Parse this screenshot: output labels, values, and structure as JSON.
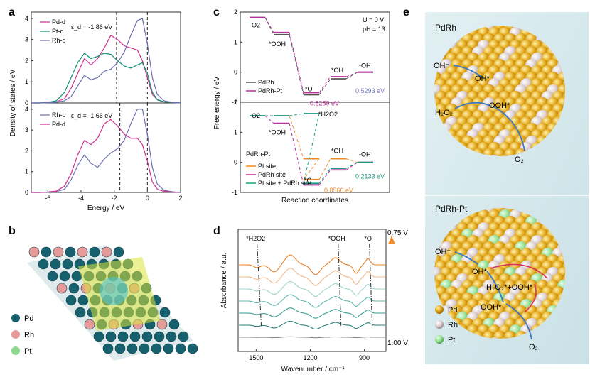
{
  "panel_labels": {
    "a": "a",
    "b": "b",
    "c": "c",
    "d": "d",
    "e": "e"
  },
  "chart_data": [
    {
      "panel": "a-top",
      "type": "line",
      "ylabel": "Density of states / eV",
      "xlim": [
        -7,
        2
      ],
      "ylim": [
        0,
        4.3
      ],
      "yticks": [
        "0",
        "1",
        "2",
        "3",
        "4"
      ],
      "annotation": "ε_d = -1.86 eV",
      "dashed_lines_x": [
        -1.86,
        0
      ],
      "series": [
        {
          "name": "Pd-d",
          "color": "#cc2f8c",
          "x": [
            -7,
            -6.5,
            -6,
            -5.5,
            -5,
            -4.6,
            -4.2,
            -3.8,
            -3.4,
            -3.0,
            -2.6,
            -2.2,
            -1.8,
            -1.4,
            -1.0,
            -0.6,
            -0.3,
            0,
            0.3,
            0.6,
            1,
            1.5,
            2
          ],
          "y": [
            0,
            0,
            0.02,
            0.05,
            0.2,
            0.7,
            1.4,
            2.1,
            1.8,
            2.1,
            2.6,
            3.2,
            3.0,
            2.7,
            2.6,
            2.5,
            2.0,
            1.2,
            0.4,
            0.15,
            0.05,
            0.02,
            0
          ]
        },
        {
          "name": "Pt-d",
          "color": "#0e8f73",
          "x": [
            -7,
            -6.5,
            -6,
            -5.5,
            -5,
            -4.6,
            -4.2,
            -3.8,
            -3.4,
            -3.0,
            -2.6,
            -2.2,
            -1.8,
            -1.4,
            -1.0,
            -0.6,
            -0.3,
            0,
            0.3,
            0.6,
            1,
            1.5,
            2
          ],
          "y": [
            0,
            0,
            0.03,
            0.1,
            0.5,
            1.2,
            1.9,
            2.35,
            2.1,
            2.2,
            2.35,
            2.3,
            2.0,
            1.75,
            1.65,
            1.8,
            1.9,
            1.4,
            0.5,
            0.15,
            0.05,
            0.02,
            0
          ]
        },
        {
          "name": "Rh-d",
          "color": "#6b6fb0",
          "x": [
            -7,
            -6.5,
            -6,
            -5.5,
            -5,
            -4.6,
            -4.2,
            -3.8,
            -3.4,
            -3.0,
            -2.6,
            -2.2,
            -1.8,
            -1.4,
            -1.0,
            -0.6,
            -0.3,
            0,
            0.3,
            0.6,
            1,
            1.5,
            2
          ],
          "y": [
            0,
            0,
            0.01,
            0.03,
            0.1,
            0.3,
            0.8,
            1.3,
            1.1,
            1.2,
            1.5,
            1.6,
            1.9,
            2.4,
            3.2,
            3.9,
            4.0,
            2.8,
            1.2,
            0.4,
            0.1,
            0.03,
            0
          ]
        }
      ]
    },
    {
      "panel": "a-bottom",
      "type": "line",
      "xlabel": "Energy / eV",
      "xlim": [
        -7,
        2
      ],
      "ylim": [
        0,
        4.3
      ],
      "xticks": [
        "-6",
        "-4",
        "-2",
        "0",
        "2"
      ],
      "yticks": [
        "0",
        "1",
        "2",
        "3",
        "4"
      ],
      "annotation": "ε_d = -1.66 eV",
      "dashed_lines_x": [
        -1.66,
        0
      ],
      "series": [
        {
          "name": "Rh-d",
          "color": "#6b6fb0",
          "x": [
            -7,
            -6.5,
            -6,
            -5.5,
            -5,
            -4.6,
            -4.2,
            -3.8,
            -3.4,
            -3.0,
            -2.6,
            -2.2,
            -1.8,
            -1.4,
            -1.0,
            -0.6,
            -0.3,
            0,
            0.3,
            0.6,
            1,
            1.5,
            2
          ],
          "y": [
            0,
            0,
            0.01,
            0.03,
            0.15,
            0.6,
            1.3,
            1.8,
            1.4,
            1.2,
            1.6,
            1.9,
            2.1,
            2.5,
            3.3,
            4.0,
            4.0,
            2.8,
            1.2,
            0.4,
            0.1,
            0.03,
            0
          ]
        },
        {
          "name": "Pd-d",
          "color": "#cc2f8c",
          "x": [
            -7,
            -6.5,
            -6,
            -5.5,
            -5,
            -4.6,
            -4.2,
            -3.8,
            -3.4,
            -3.0,
            -2.6,
            -2.2,
            -1.8,
            -1.4,
            -1.0,
            -0.6,
            -0.3,
            0,
            0.3,
            0.6,
            1,
            1.5,
            2
          ],
          "y": [
            0,
            0,
            0.02,
            0.06,
            0.3,
            0.9,
            1.8,
            2.5,
            2.3,
            2.6,
            3.3,
            3.5,
            3.2,
            2.8,
            2.6,
            2.6,
            2.3,
            1.5,
            0.5,
            0.15,
            0.05,
            0.02,
            0
          ]
        }
      ]
    },
    {
      "panel": "c",
      "type": "line",
      "ylabel": "Free energy / eV",
      "xlabel": "Reaction coordinates",
      "conditions": [
        "U = 0 V",
        "pH = 13"
      ],
      "top": {
        "ylim": [
          -1,
          2
        ],
        "yticks": [
          "-1",
          "0",
          "1",
          "2"
        ],
        "species": [
          "O2",
          "*OOH",
          "*O",
          "*OH",
          "-OH"
        ],
        "series": [
          {
            "name": "PdRh",
            "color": "#555555",
            "values": [
              1.82,
              1.25,
              -0.75,
              -0.22,
              0
            ]
          },
          {
            "name": "PdRh-Pt",
            "color": "#bb2d9a",
            "values": [
              1.82,
              1.32,
              -0.68,
              -0.15,
              0
            ]
          }
        ],
        "labels": {
          "gap1": "0.5289 eV",
          "gap2": "0.5293 eV"
        }
      },
      "bottom": {
        "ylim": [
          -1,
          2
        ],
        "yticks": [
          "-1",
          "0",
          "1",
          "2"
        ],
        "species": [
          "O2",
          "*OOH",
          "*O",
          "*H2O2",
          "*OH",
          "-OH"
        ],
        "title": "PdRh-Pt",
        "series": [
          {
            "name": "Pt site",
            "color": "#f08a24",
            "values": [
              1.55,
              1.55,
              0.12,
              -0.57,
              0.12,
              0
            ]
          },
          {
            "name": "PdRh site",
            "color": "#bb2d9a",
            "values": [
              1.55,
              1.3,
              -0.75,
              null,
              -0.25,
              0
            ]
          },
          {
            "name": "Pt site + PdRh site",
            "color": "#1a9c80",
            "values": [
              1.55,
              1.55,
              1.62,
              -0.7,
              -0.2,
              0
            ]
          }
        ],
        "labels": {
          "gap1": "0.8566 eV",
          "gap2": "0.2133 eV"
        }
      }
    },
    {
      "panel": "d",
      "type": "line",
      "ylabel": "Absorbance / a.u.",
      "xlabel": "Wavenumber / cm⁻¹",
      "xlim": [
        1600,
        780
      ],
      "xticks": [
        "1500",
        "1200",
        "900"
      ],
      "potential_top": "0.75 V",
      "potential_bottom": "1.00 V",
      "peaks": [
        {
          "label": "*H2O2",
          "x": 1495
        },
        {
          "label": "*OOH",
          "x": 1045
        },
        {
          "label": "*O",
          "x": 872
        }
      ],
      "series_colors": [
        "#e8832a",
        "#f2b98b",
        "#9fd4cc",
        "#5fb8ac",
        "#3a9e92",
        "#2f8079",
        "#888888"
      ]
    }
  ],
  "panel_b": {
    "legend": [
      {
        "name": "Pd",
        "color": "#17606e"
      },
      {
        "name": "Rh",
        "color": "#e79a9a"
      },
      {
        "name": "Pt",
        "color": "#8ed78e"
      }
    ]
  },
  "panel_e": {
    "top": {
      "title": "PdRh",
      "labels": [
        "OH⁻",
        "OH*",
        "H₂O₂",
        "OOH*",
        "O₂"
      ]
    },
    "bottom": {
      "title": "PdRh-Pt",
      "labels": [
        "OH⁻",
        "OH*",
        "H₂O₂*+OOH*",
        "OOH*",
        "O₂"
      ]
    },
    "legend": [
      {
        "name": "Pd",
        "color": "#e5b22a"
      },
      {
        "name": "Rh",
        "color": "#d8c9c9"
      },
      {
        "name": "Pt",
        "color": "#9be09b"
      }
    ]
  }
}
